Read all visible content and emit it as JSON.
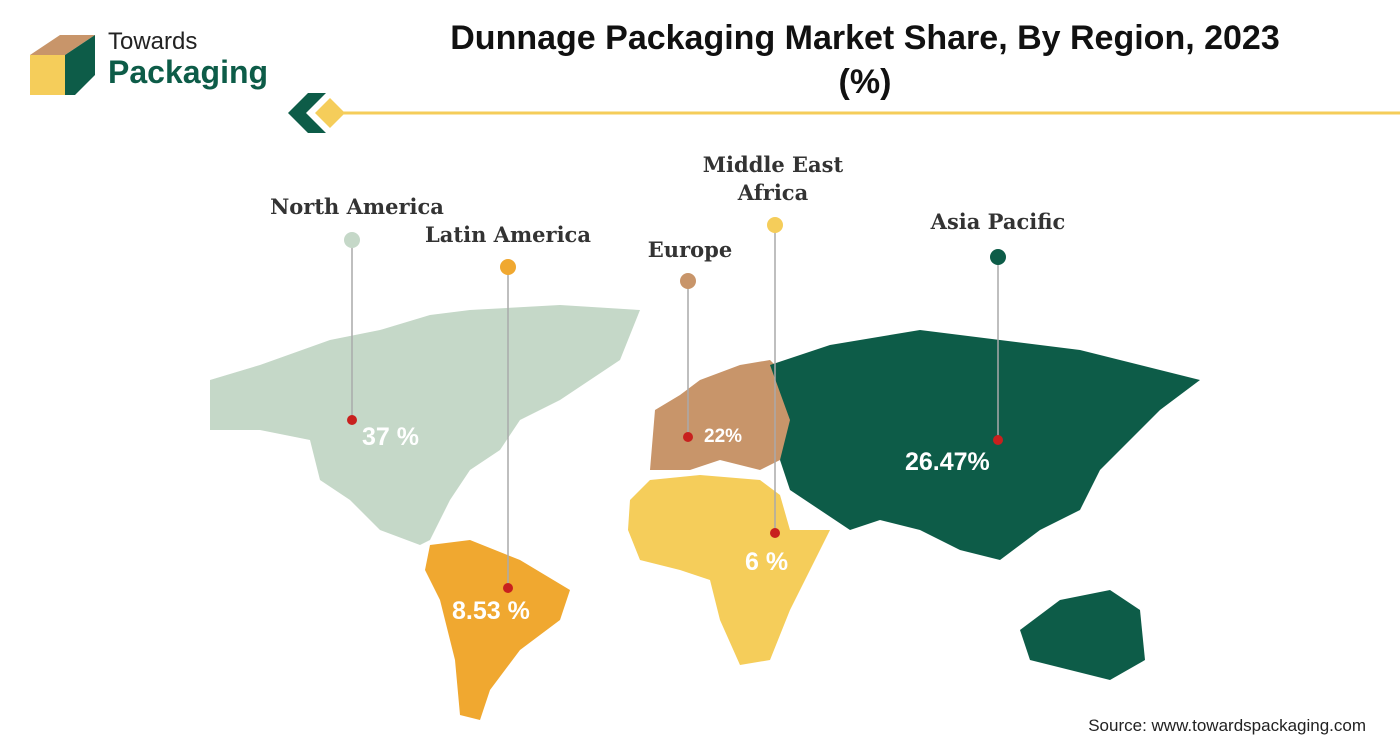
{
  "header": {
    "logo_top": "Towards",
    "logo_bottom": "Packaging",
    "title": "Dunnage Packaging Market Share, By Region, 2023 (%)"
  },
  "regions": [
    {
      "name": "North America",
      "label": "37 %",
      "color": "#c5d8c8"
    },
    {
      "name": "Latin America",
      "label": "8.53 %",
      "color": "#f0a830"
    },
    {
      "name": "Europe",
      "label": "22%",
      "color": "#c8956a"
    },
    {
      "name": "Middle East Africa",
      "label": "6 %",
      "color": "#f5cd5a"
    },
    {
      "name": "Asia Pacific",
      "label": "26.47%",
      "color": "#0d5c48"
    }
  ],
  "source": "Source: www.towardspackaging.com"
}
